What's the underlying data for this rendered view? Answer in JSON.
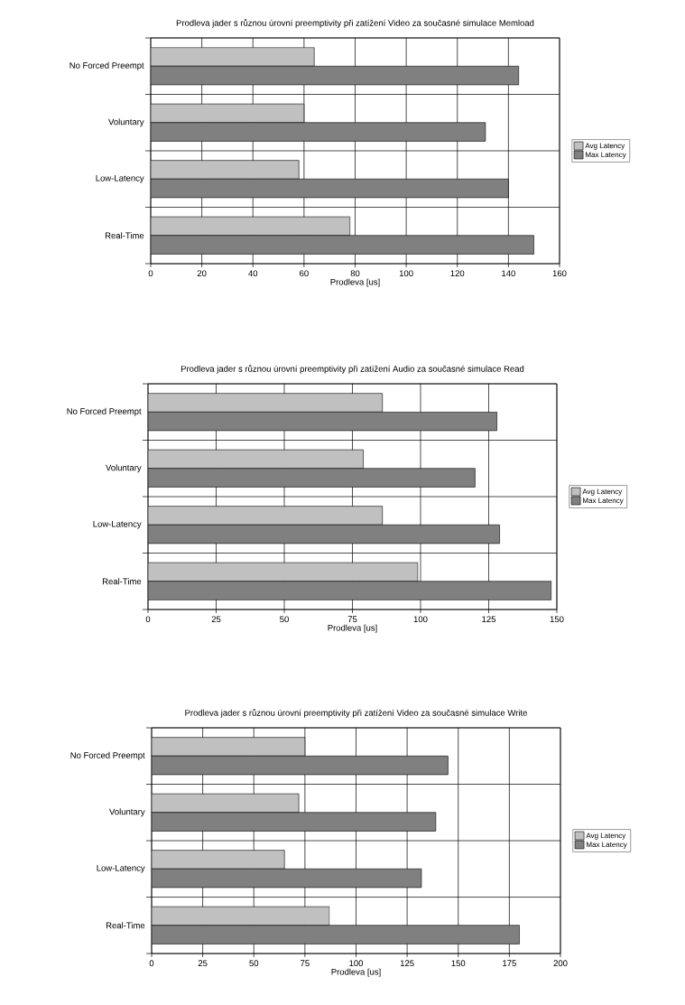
{
  "chart_data": [
    {
      "type": "bar",
      "orientation": "horizontal",
      "title": "Prodleva jader s různou úrovní preemptivity při zatížení Video za současné simulace Memload",
      "xlabel": "Prodleva [us]",
      "categories": [
        "No Forced Preempt",
        "Voluntary",
        "Low-Latency",
        "Real-Time"
      ],
      "series": [
        {
          "name": "Avg Latency",
          "color": "#c0c0c0",
          "values": [
            64,
            60,
            58,
            78
          ]
        },
        {
          "name": "Max Latency",
          "color": "#808080",
          "values": [
            144,
            131,
            140,
            150
          ]
        }
      ],
      "xlim": [
        0,
        160
      ],
      "xticks": [
        0,
        20,
        40,
        60,
        80,
        100,
        120,
        140,
        160
      ],
      "grid": true,
      "legend": "right"
    },
    {
      "type": "bar",
      "orientation": "horizontal",
      "title": "Prodleva jader s různou úrovní preemptivity při zatížení Audio za současné simulace Read",
      "xlabel": "Prodleva [us]",
      "categories": [
        "No Forced Preempt",
        "Voluntary",
        "Low-Latency",
        "Real-Time"
      ],
      "series": [
        {
          "name": "Avg Latency",
          "color": "#c0c0c0",
          "values": [
            86,
            79,
            86,
            99
          ]
        },
        {
          "name": "Max Latency",
          "color": "#808080",
          "values": [
            128,
            120,
            129,
            148
          ]
        }
      ],
      "xlim": [
        0,
        150
      ],
      "xticks": [
        0,
        25,
        50,
        75,
        100,
        125,
        150
      ],
      "grid": true,
      "legend": "right"
    },
    {
      "type": "bar",
      "orientation": "horizontal",
      "title": "Prodleva jader s různou úrovní preemptivity při zatížení Video za současné simulace Write",
      "xlabel": "Prodleva [us]",
      "categories": [
        "No Forced Preempt",
        "Voluntary",
        "Low-Latency",
        "Real-Time"
      ],
      "series": [
        {
          "name": "Avg Latency",
          "color": "#c0c0c0",
          "values": [
            75,
            72,
            65,
            87
          ]
        },
        {
          "name": "Max Latency",
          "color": "#808080",
          "values": [
            145,
            139,
            132,
            180
          ]
        }
      ],
      "xlim": [
        0,
        200
      ],
      "xticks": [
        0,
        25,
        50,
        75,
        100,
        125,
        150,
        175,
        200
      ],
      "grid": true,
      "legend": "right"
    }
  ]
}
